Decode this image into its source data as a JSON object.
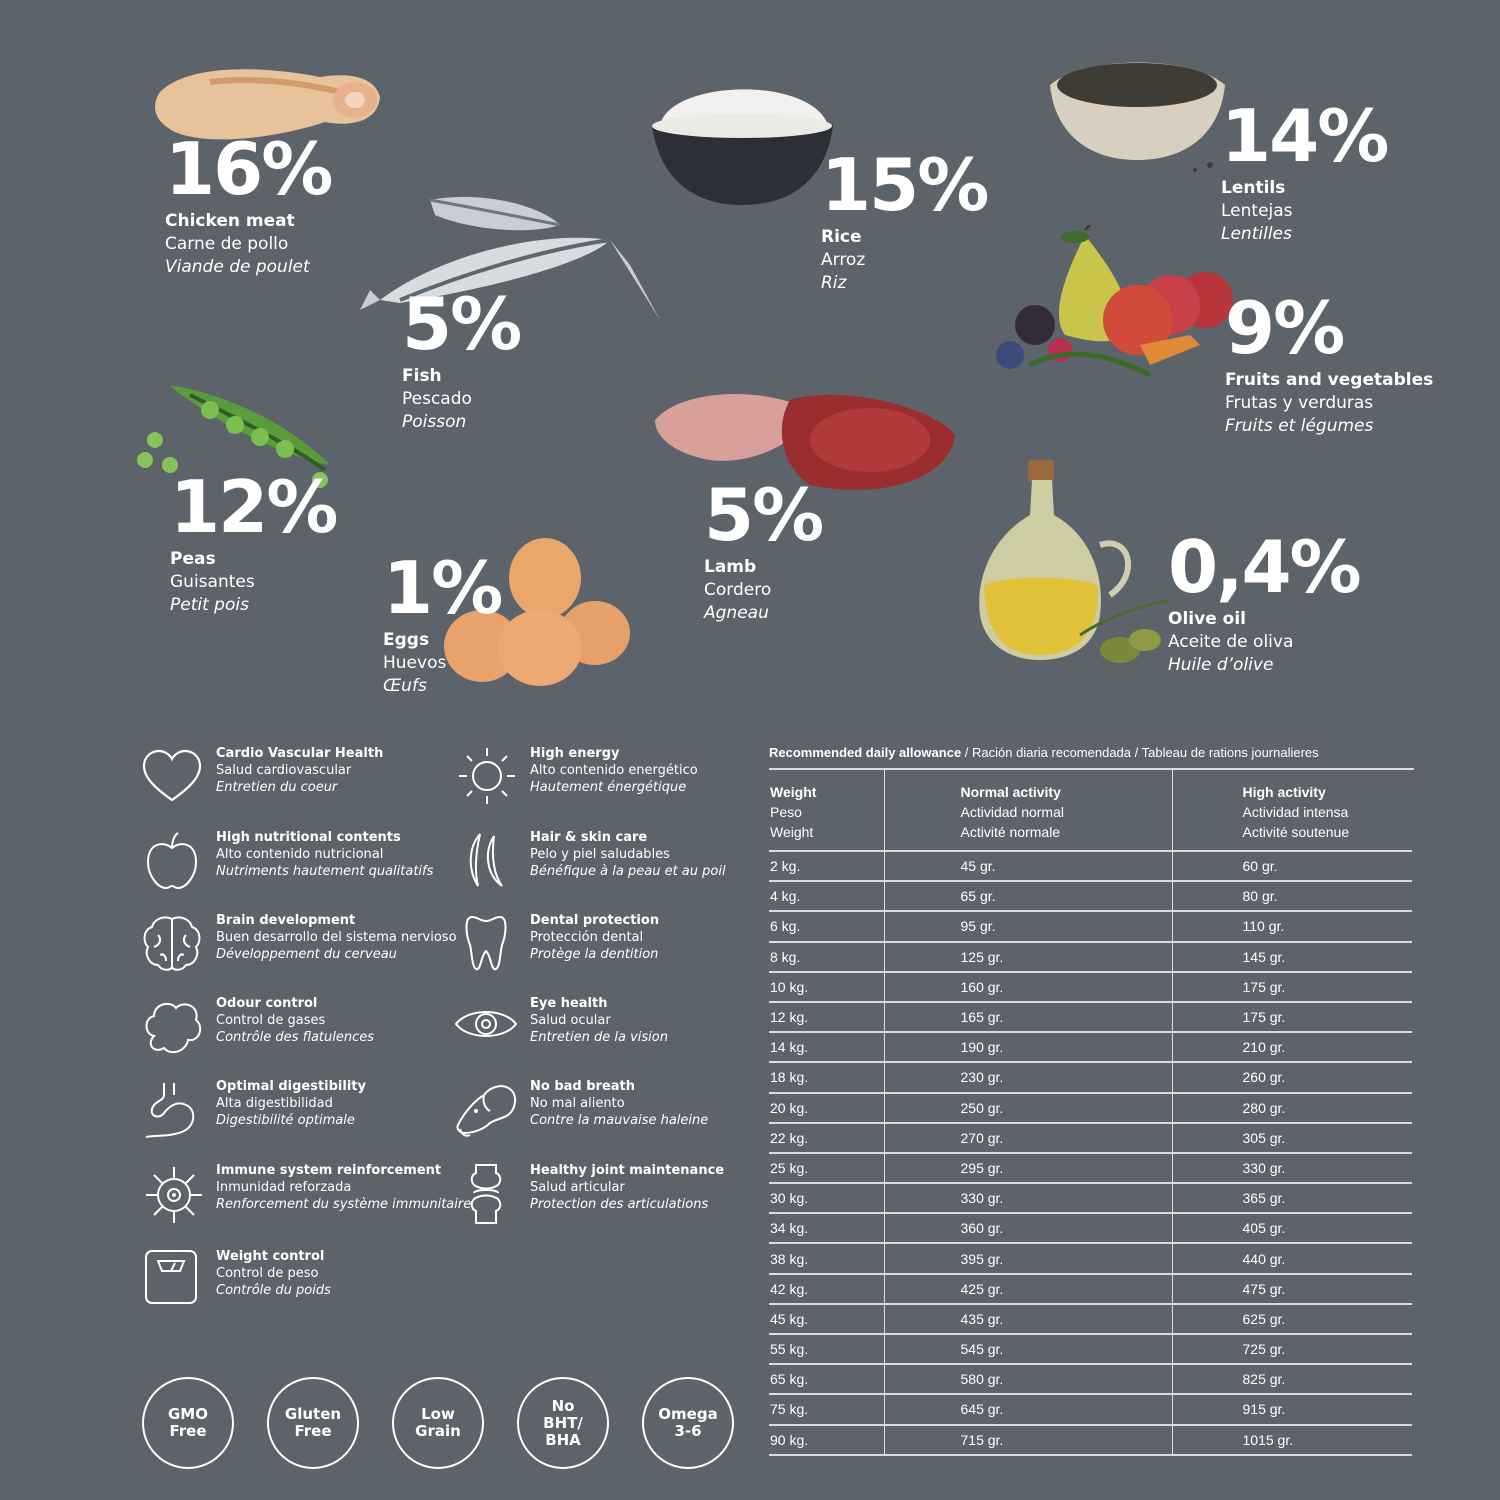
{
  "ingredients": {
    "chicken": {
      "pct": "16%",
      "en": "Chicken meat",
      "es": "Carne de pollo",
      "fr": "Viande de poulet"
    },
    "fish": {
      "pct": "5%",
      "en": "Fish",
      "es": "Pescado",
      "fr": "Poisson"
    },
    "rice": {
      "pct": "15%",
      "en": "Rice",
      "es": "Arroz",
      "fr": "Riz"
    },
    "lentils": {
      "pct": "14%",
      "en": "Lentils",
      "es": "Lentejas",
      "fr": "Lentilles"
    },
    "fruits": {
      "pct": "9%",
      "en": "Fruits and vegetables",
      "es": "Frutas y verduras",
      "fr": "Fruits et légumes"
    },
    "peas": {
      "pct": "12%",
      "en": "Peas",
      "es": "Guisantes",
      "fr": "Petit pois"
    },
    "eggs": {
      "pct": "1%",
      "en": "Eggs",
      "es": "Huevos",
      "fr": "Œufs"
    },
    "lamb": {
      "pct": "5%",
      "en": "Lamb",
      "es": "Cordero",
      "fr": "Agneau"
    },
    "olive": {
      "pct": "0,4%",
      "en": "Olive oil",
      "es": "Aceite de oliva",
      "fr": "Huile d’olive"
    }
  },
  "benefits": [
    {
      "icon": "heart-icon",
      "en": "Cardio Vascular Health",
      "es": "Salud cardiovascular",
      "fr": "Entretien du coeur"
    },
    {
      "icon": "sun-icon",
      "en": "High energy",
      "es": "Alto contenido energético",
      "fr": "Hautement énergétique"
    },
    {
      "icon": "apple-icon",
      "en": "High nutritional contents",
      "es": "Alto contenido nutricional",
      "fr": "Nutriments hautement qualitatifs"
    },
    {
      "icon": "hair-icon",
      "en": "Hair & skin care",
      "es": "Pelo y piel saludables",
      "fr": "Bénéfique à la peau et au poil"
    },
    {
      "icon": "brain-icon",
      "en": "Brain development",
      "es": "Buen desarrollo del sistema nervioso",
      "fr": "Développement du cerveau"
    },
    {
      "icon": "tooth-icon",
      "en": "Dental protection",
      "es": "Protección dental",
      "fr": "Protège la dentition"
    },
    {
      "icon": "cloud-icon",
      "en": "Odour control",
      "es": "Control de gases",
      "fr": "Contrôle des flatulences"
    },
    {
      "icon": "eye-icon",
      "en": "Eye health",
      "es": "Salud ocular",
      "fr": "Entretien de la vision"
    },
    {
      "icon": "stomach-icon",
      "en": "Optimal digestibility",
      "es": "Alta digestibilidad",
      "fr": "Digestibilité optimale"
    },
    {
      "icon": "dog-head-icon",
      "en": "No bad breath",
      "es": "No mal aliento",
      "fr": "Contre la mauvaise haleine"
    },
    {
      "icon": "virus-icon",
      "en": "Immune system reinforcement",
      "es": "Inmunidad reforzada",
      "fr": "Renforcement du système immunitaire"
    },
    {
      "icon": "joint-icon",
      "en": "Healthy joint maintenance",
      "es": "Salud articular",
      "fr": "Protection des articulations"
    },
    {
      "icon": "scale-icon",
      "en": "Weight control",
      "es": "Control de peso",
      "fr": "Contrôle du poids"
    }
  ],
  "badges": [
    "GMO\nFree",
    "Gluten\nFree",
    "Low\nGrain",
    "No\nBHT/\nBHA",
    "Omega\n3-6"
  ],
  "rda": {
    "title_bold": "Recommended daily allowance",
    "title_rest": " / Ración diaria recomendada /  Tableau de rations journalieres",
    "headers": [
      {
        "en": "Weight",
        "es": "Peso",
        "fr": "Weight"
      },
      {
        "en": "Normal activity",
        "es": "Actividad normal",
        "fr": "Activité normale"
      },
      {
        "en": "High activity",
        "es": "Actividad intensa",
        "fr": "Activité soutenue"
      }
    ],
    "rows": [
      [
        "2 kg.",
        "45 gr.",
        "60 gr."
      ],
      [
        "4 kg.",
        "65 gr.",
        "80 gr."
      ],
      [
        "6 kg.",
        "95 gr.",
        "110 gr."
      ],
      [
        "8 kg.",
        "125 gr.",
        "145 gr."
      ],
      [
        "10 kg.",
        "160 gr.",
        "175 gr."
      ],
      [
        "12 kg.",
        "165 gr.",
        "175 gr."
      ],
      [
        "14 kg.",
        "190 gr.",
        "210 gr."
      ],
      [
        "18 kg.",
        "230 gr.",
        "260 gr."
      ],
      [
        "20 kg.",
        "250 gr.",
        "280 gr."
      ],
      [
        "22 kg.",
        "270 gr.",
        "305 gr."
      ],
      [
        "25 kg.",
        "295 gr.",
        "330 gr."
      ],
      [
        "30 kg.",
        "330 gr.",
        "365 gr."
      ],
      [
        "34 kg.",
        "360 gr.",
        "405 gr."
      ],
      [
        "38 kg.",
        "395 gr.",
        "440 gr."
      ],
      [
        "42 kg.",
        "425 gr.",
        "475 gr."
      ],
      [
        "45 kg.",
        "435 gr.",
        "625 gr."
      ],
      [
        "55 kg.",
        "545 gr.",
        "725 gr."
      ],
      [
        "65 kg.",
        "580 gr.",
        "825 gr."
      ],
      [
        "75 kg.",
        "645 gr.",
        "915 gr."
      ],
      [
        "90 kg.",
        "715 gr.",
        "1015 gr."
      ]
    ]
  }
}
